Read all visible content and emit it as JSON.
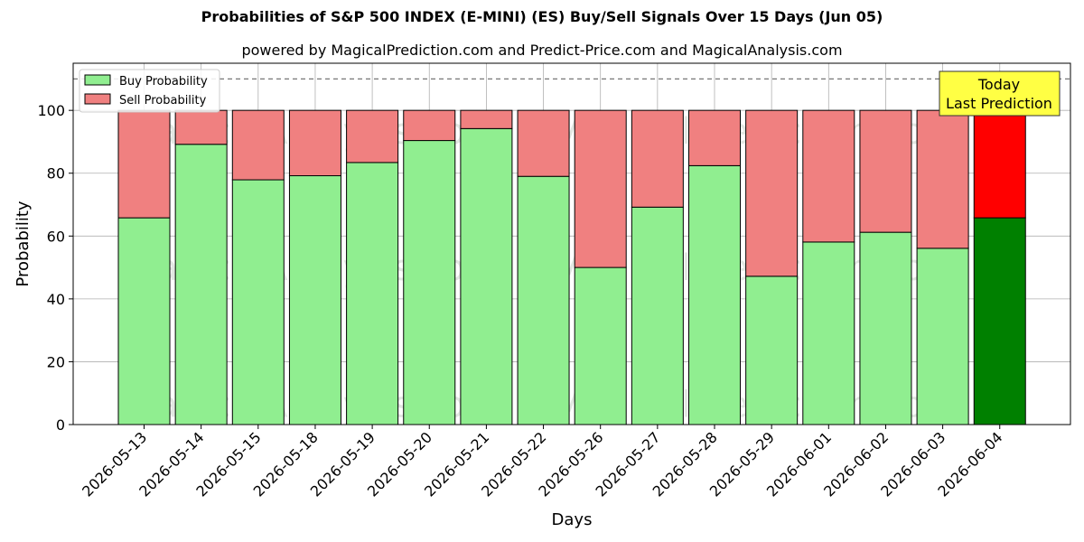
{
  "chart_data": {
    "type": "bar",
    "stacked": true,
    "title": "Probabilities of S&P 500 INDEX (E-MINI) (ES) Buy/Sell Signals Over 15 Days (Jun 05)",
    "subtitle": "powered by MagicalPrediction.com and Predict-Price.com and MagicalAnalysis.com",
    "xlabel": "Days",
    "ylabel": "Probability",
    "ylim": [
      0,
      115
    ],
    "yticks": [
      0,
      20,
      40,
      60,
      80,
      100
    ],
    "grid": true,
    "legend_position": "top-left",
    "reference_line": 110,
    "categories": [
      "2026-05-13",
      "2026-05-14",
      "2026-05-15",
      "2026-05-18",
      "2026-05-19",
      "2026-05-20",
      "2026-05-21",
      "2026-05-22",
      "2026-05-26",
      "2026-05-27",
      "2026-05-28",
      "2026-05-29",
      "2026-06-01",
      "2026-06-02",
      "2026-06-03",
      "2026-06-04"
    ],
    "series": [
      {
        "name": "Buy Probability",
        "color": "#90ee90",
        "highlight_color": "#008000",
        "values": [
          65.8,
          89.2,
          77.9,
          79.2,
          83.4,
          90.4,
          94.2,
          79.0,
          50.0,
          69.2,
          82.4,
          47.2,
          58.1,
          61.2,
          56.1,
          65.8
        ]
      },
      {
        "name": "Sell Probability",
        "color": "#f08080",
        "highlight_color": "#ff0000",
        "values": [
          34.2,
          10.8,
          22.1,
          20.8,
          16.6,
          9.6,
          5.8,
          21.0,
          50.0,
          30.8,
          17.6,
          52.8,
          41.9,
          38.8,
          43.9,
          34.2
        ]
      }
    ],
    "highlight_index": 15,
    "annotation": {
      "line1": "Today",
      "line2": "Last Prediction",
      "color": "#ffff44"
    },
    "watermarks": [
      "MagicalAnalysis.com",
      "MagicalPrediction.com"
    ]
  }
}
